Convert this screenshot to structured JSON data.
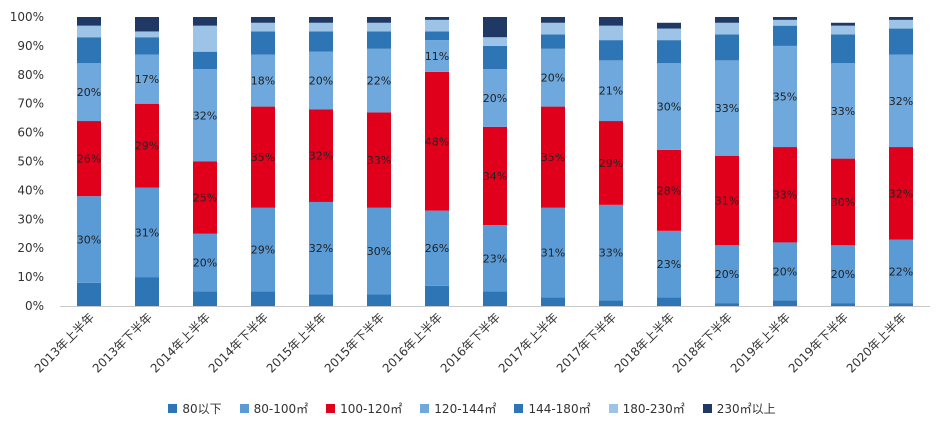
{
  "chart_data": {
    "type": "bar",
    "stacked": true,
    "ylim": [
      0,
      100
    ],
    "yticks": [
      "0%",
      "10%",
      "20%",
      "30%",
      "40%",
      "50%",
      "60%",
      "70%",
      "80%",
      "90%",
      "100%"
    ],
    "categories": [
      "2013年上半年",
      "2013年下半年",
      "2014年上半年",
      "2014年下半年",
      "2015年上半年",
      "2015年下半年",
      "2016年上半年",
      "2016年下半年",
      "2017年上半年",
      "2017年下半年",
      "2018年上半年",
      "2018年下半年",
      "2019年上半年",
      "2019年下半年",
      "2020年上半年"
    ],
    "series": [
      {
        "name": "80以下",
        "color": "#2e75b6",
        "values": [
          8,
          10,
          5,
          5,
          4,
          4,
          7,
          5,
          3,
          2,
          3,
          1,
          2,
          1,
          1
        ]
      },
      {
        "name": "80-100㎡",
        "color": "#5b9bd5",
        "values": [
          30,
          31,
          20,
          29,
          32,
          30,
          26,
          23,
          31,
          33,
          23,
          20,
          20,
          20,
          22
        ]
      },
      {
        "name": "100-120㎡",
        "color": "#e0001b",
        "values": [
          26,
          29,
          25,
          35,
          32,
          33,
          48,
          34,
          35,
          29,
          28,
          31,
          33,
          30,
          32
        ]
      },
      {
        "name": "120-144㎡",
        "color": "#6fa8dc",
        "values": [
          20,
          17,
          32,
          18,
          20,
          22,
          11,
          20,
          20,
          21,
          30,
          33,
          35,
          33,
          32
        ]
      },
      {
        "name": "144-180㎡",
        "color": "#2e75b6",
        "values": [
          9,
          6,
          6,
          8,
          7,
          6,
          3,
          8,
          5,
          7,
          8,
          9,
          7,
          10,
          9
        ]
      },
      {
        "name": "180-230㎡",
        "color": "#9dc3e6",
        "values": [
          4,
          2,
          9,
          3,
          3,
          3,
          4,
          3,
          4,
          5,
          4,
          4,
          2,
          3,
          3
        ]
      },
      {
        "name": "230㎡以上",
        "color": "#1f3864",
        "values": [
          3,
          5,
          3,
          2,
          2,
          2,
          1,
          7,
          2,
          3,
          2,
          2,
          1,
          1,
          1
        ]
      }
    ],
    "data_labels_for_series": [
      "80-100㎡",
      "100-120㎡",
      "120-144㎡"
    ],
    "legend_position": "bottom",
    "grid": false
  }
}
